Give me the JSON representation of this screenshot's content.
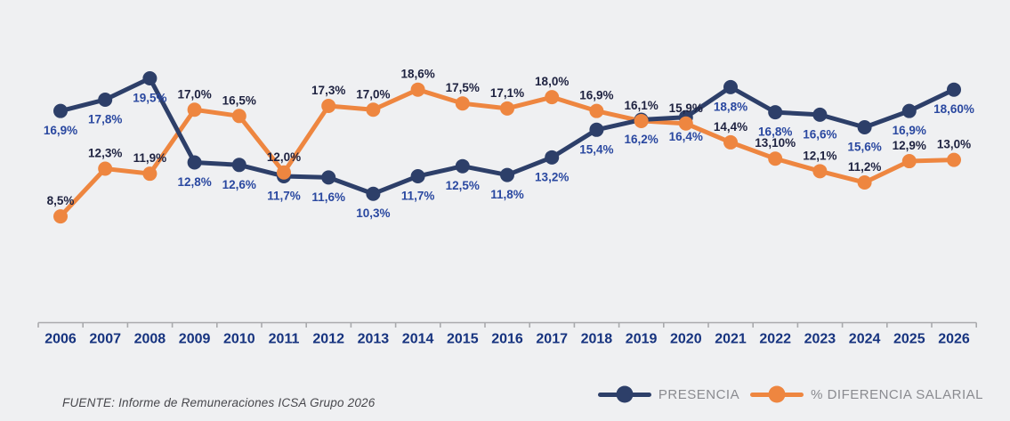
{
  "chart_data": {
    "type": "line",
    "x": [
      "2006",
      "2007",
      "2008",
      "2009",
      "2010",
      "2011",
      "2012",
      "2013",
      "2014",
      "2015",
      "2016",
      "2017",
      "2018",
      "2019",
      "2020",
      "2021",
      "2022",
      "2023",
      "2024",
      "2025",
      "2026"
    ],
    "series": [
      {
        "id": "presencia",
        "name": "PRESENCIA",
        "color": "#2d3f69",
        "label_color": "#2a48a0",
        "label_position": "below",
        "values": [
          16.9,
          17.8,
          19.5,
          12.8,
          12.6,
          11.7,
          11.6,
          10.3,
          11.7,
          12.5,
          11.8,
          13.2,
          15.4,
          16.2,
          16.4,
          18.8,
          16.8,
          16.6,
          15.6,
          16.9,
          18.6
        ],
        "labels": [
          "16,9%",
          "17,8%",
          "19,5%",
          "12,8%",
          "12,6%",
          "11,7%",
          "11,6%",
          "10,3%",
          "11,7%",
          "12,5%",
          "11,8%",
          "13,2%",
          "15,4%",
          "16,2%",
          "16,4%",
          "18,8%",
          "16,8%",
          "16,6%",
          "15,6%",
          "16,9%",
          "18,60%"
        ]
      },
      {
        "id": "diferencia-salarial",
        "name": "% DIFERENCIA SALARIAL",
        "color": "#ee8640",
        "label_color": "#1e2240",
        "label_position": "above",
        "values": [
          8.5,
          12.3,
          11.9,
          17.0,
          16.5,
          12.0,
          17.3,
          17.0,
          18.6,
          17.5,
          17.1,
          18.0,
          16.9,
          16.1,
          15.9,
          14.4,
          13.1,
          12.1,
          11.2,
          12.9,
          13.0
        ],
        "labels": [
          "8,5%",
          "12,3%",
          "11,9%",
          "17,0%",
          "16,5%",
          "12,0%",
          "17,3%",
          "17,0%",
          "18,6%",
          "17,5%",
          "17,1%",
          "18,0%",
          "16,9%",
          "16,1%",
          "15,9%",
          "14,4%",
          "13,10%",
          "12,1%",
          "11,2%",
          "12,9%",
          "13,0%"
        ]
      }
    ],
    "title": "",
    "xlabel": "",
    "ylabel": "",
    "ylim": [
      7.5,
      20.5
    ],
    "grid": false,
    "legend_position": "bottom-right",
    "value_label_format": "comma-decimal-percent",
    "colors": {
      "background": "#eff0f2",
      "axis_line": "#a9aaad",
      "year_label": "#16337f"
    }
  },
  "legend": {
    "items": [
      {
        "label": "PRESENCIA"
      },
      {
        "label": "% DIFERENCIA SALARIAL"
      }
    ]
  },
  "footer": {
    "source": "FUENTE: Informe de Remuneraciones ICSA Grupo 2026"
  }
}
